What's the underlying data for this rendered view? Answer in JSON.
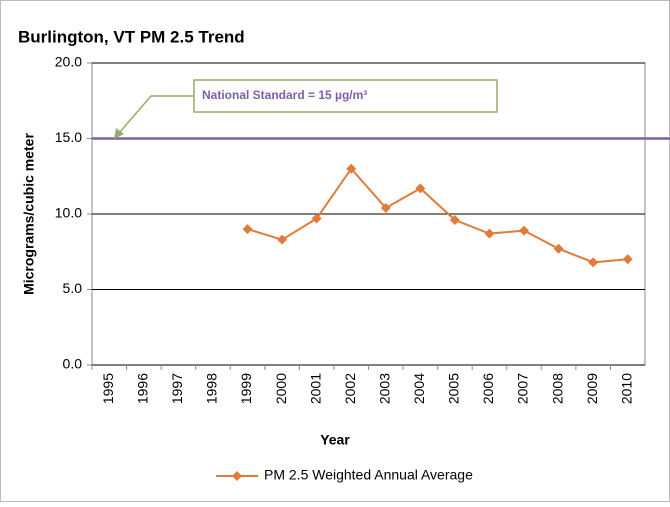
{
  "chart_data": {
    "type": "line",
    "title": "Burlington, VT  PM 2.5 Trend",
    "x_label": "Year",
    "y_label": "Micrograms/cubic meter",
    "categories": [
      "1995",
      "1996",
      "1997",
      "1998",
      "1999",
      "2000",
      "2001",
      "2002",
      "2003",
      "2004",
      "2005",
      "2006",
      "2007",
      "2008",
      "2009",
      "2010"
    ],
    "series": [
      {
        "name": "PM 2.5 Weighted Annual Average",
        "color": "#e07b39",
        "values": [
          null,
          null,
          null,
          null,
          9.0,
          8.3,
          9.7,
          13.0,
          10.4,
          11.7,
          9.6,
          8.7,
          8.9,
          7.7,
          6.8,
          7.0
        ]
      }
    ],
    "ylim": [
      0,
      20
    ],
    "yticks": [
      {
        "value": 0,
        "label": "0.0"
      },
      {
        "value": 5,
        "label": "5.0"
      },
      {
        "value": 10,
        "label": "10.0"
      },
      {
        "value": 15,
        "label": "15.0"
      },
      {
        "value": 20,
        "label": "20.0"
      }
    ],
    "grid": true,
    "reference_line": {
      "value": 15,
      "color": "#7f5fa8",
      "label": "National Standard = 15 µg/m³"
    },
    "legend": "bottom"
  }
}
